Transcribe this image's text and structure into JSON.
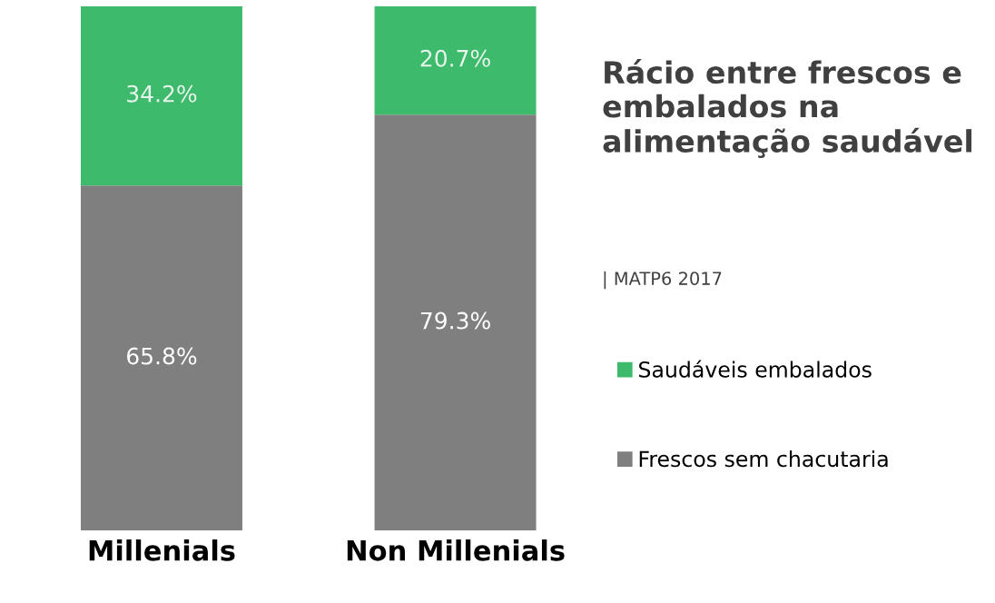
{
  "chart_data": {
    "type": "bar",
    "stacked": true,
    "title": "Rácio entre frescos e embalados na alimentação saudável",
    "subtitle": "| MATP6 2017",
    "categories": [
      "Millenials",
      "Non Millenials"
    ],
    "series": [
      {
        "name": "Frescos sem chacutaria",
        "color": "#7f7f7f",
        "values": [
          65.8,
          79.3
        ],
        "value_labels": [
          "65.8%",
          "79.3%"
        ]
      },
      {
        "name": "Saudáveis embalados",
        "color": "#3dba6c",
        "values": [
          34.2,
          20.7
        ],
        "value_labels": [
          "34.2%",
          "20.7%"
        ]
      }
    ],
    "legend": "right",
    "marker": "square"
  }
}
